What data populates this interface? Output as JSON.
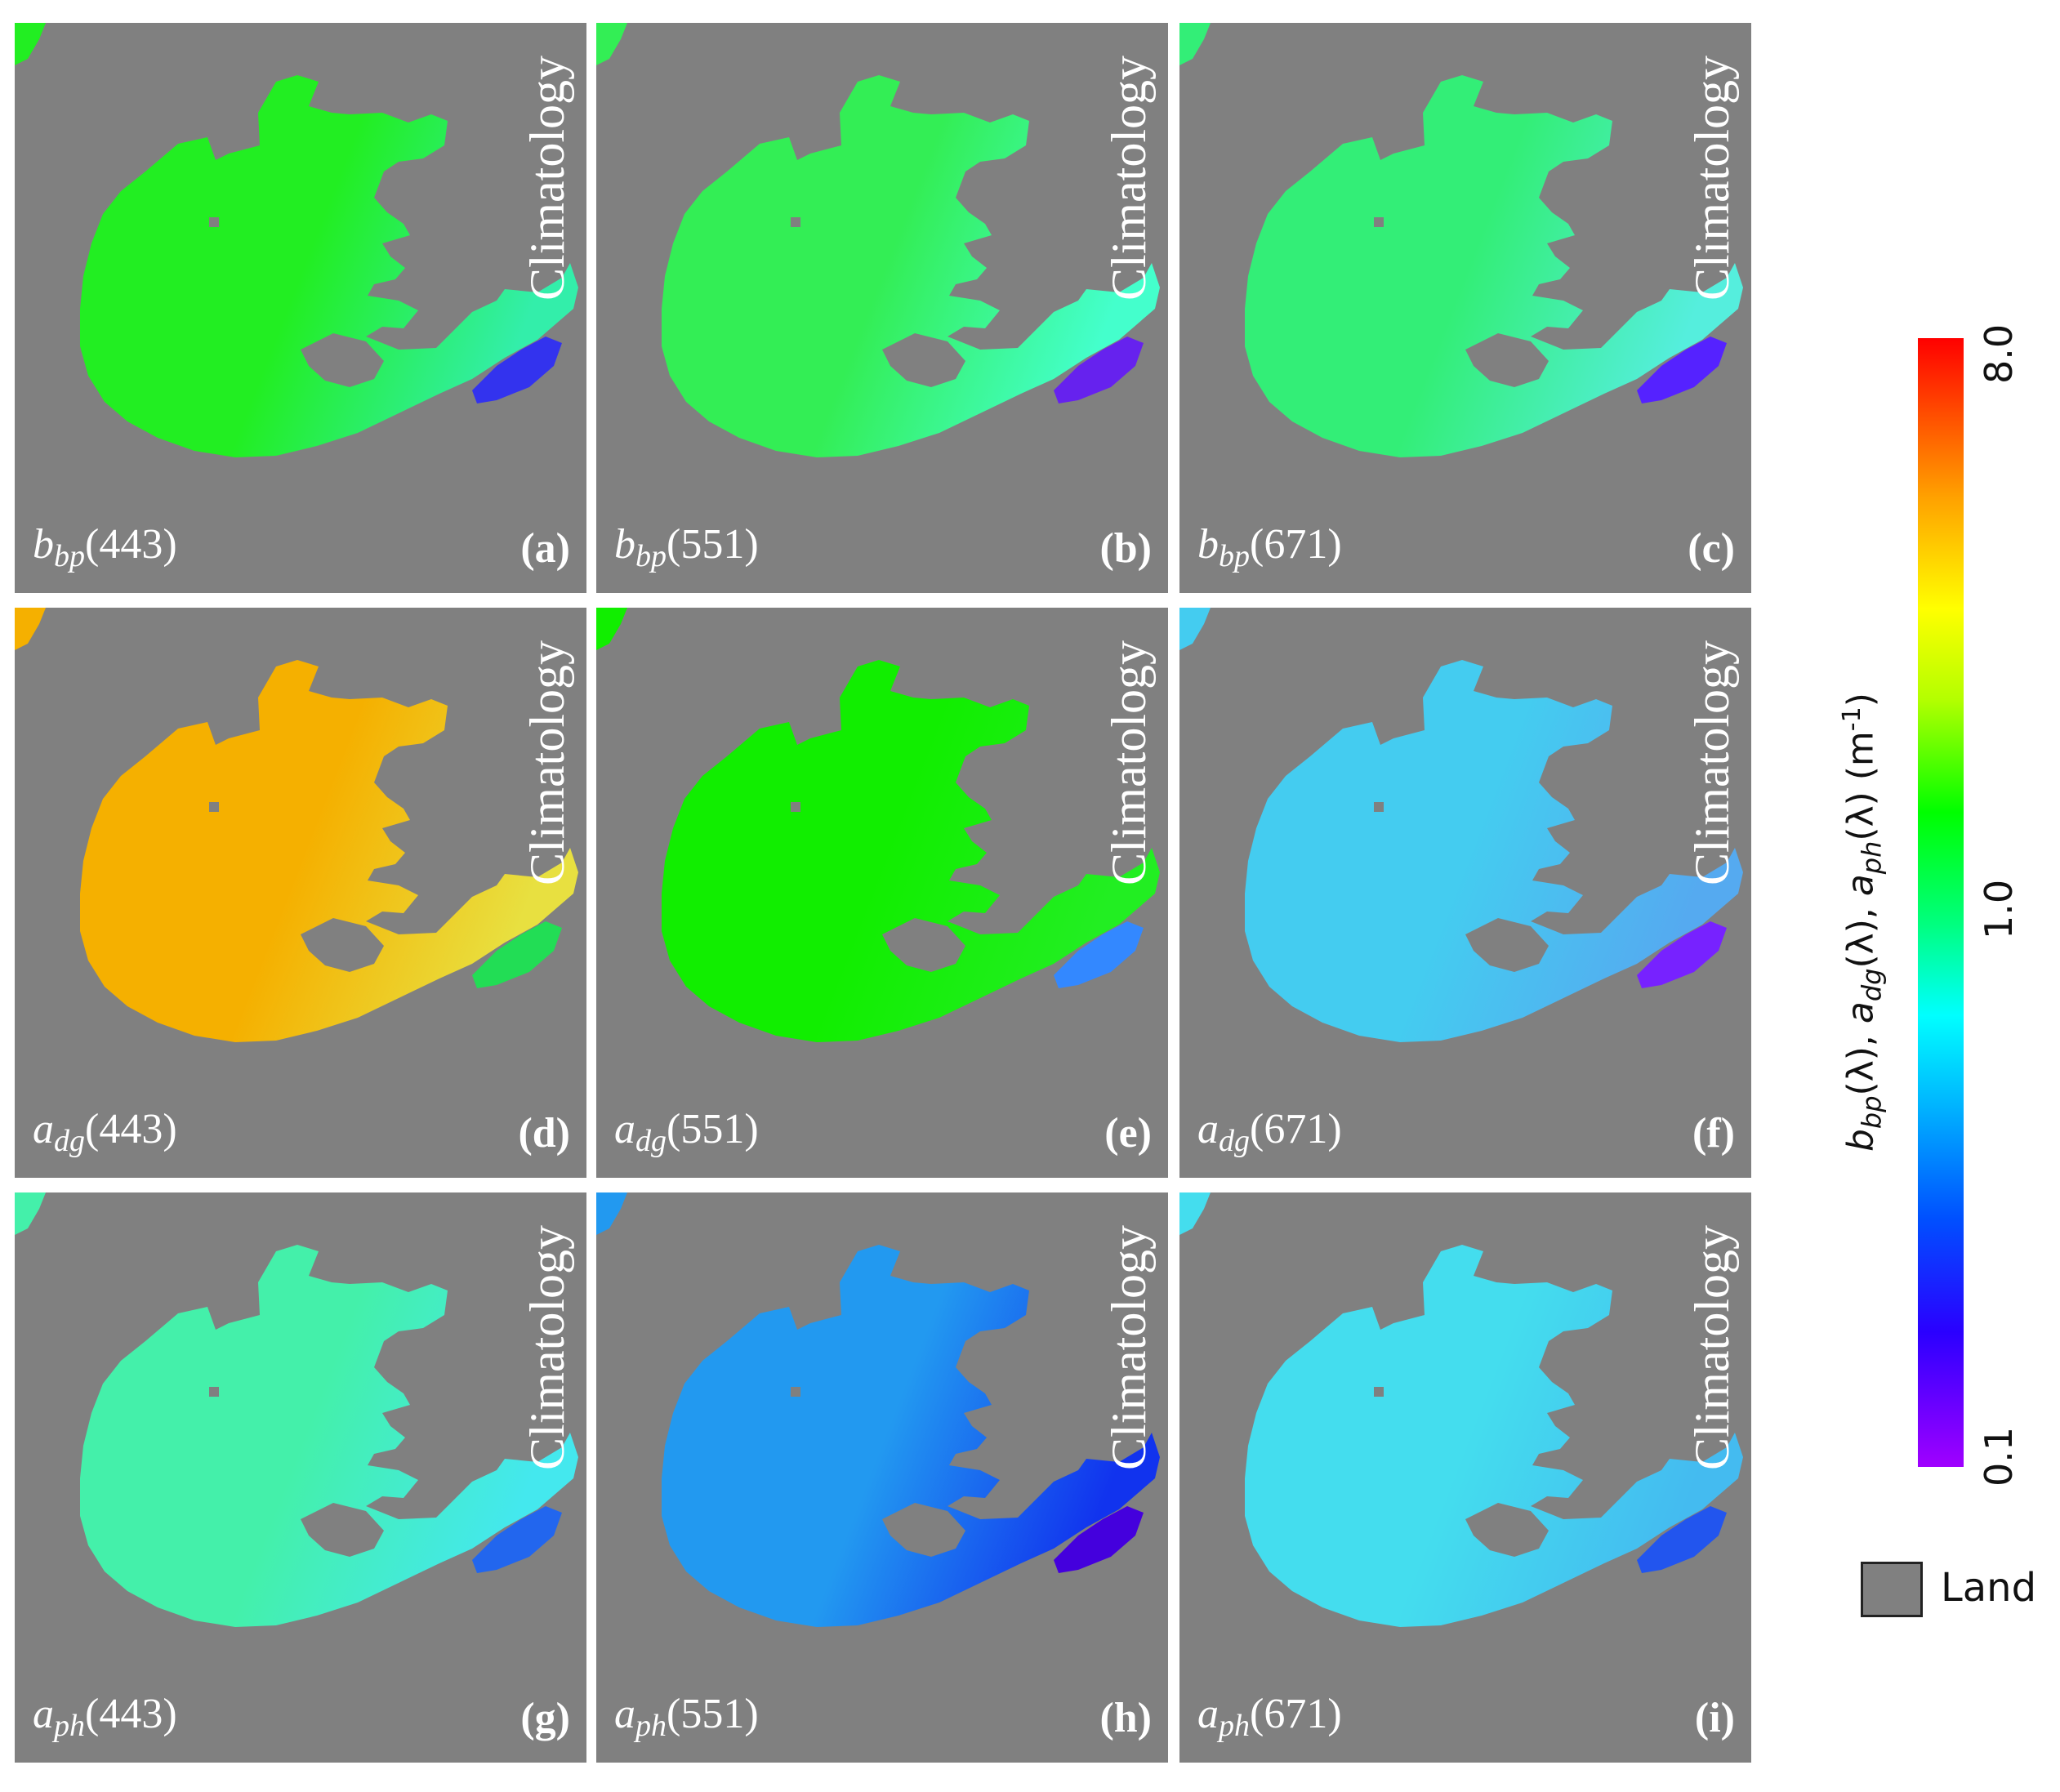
{
  "panels": [
    {
      "id": "a",
      "letter": "(a)",
      "param_symbol": "b",
      "param_sub": "bp",
      "wavelength": "(443)",
      "title": "Climatology",
      "colors": {
        "main": "#22ee22",
        "east": "#33eeaa",
        "channel": "#3333ee"
      }
    },
    {
      "id": "b",
      "letter": "(b)",
      "param_symbol": "b",
      "param_sub": "bp",
      "wavelength": "(551)",
      "title": "Climatology",
      "colors": {
        "main": "#33ee55",
        "east": "#44ffcc",
        "channel": "#6622ee"
      }
    },
    {
      "id": "c",
      "letter": "(c)",
      "param_symbol": "b",
      "param_sub": "bp",
      "wavelength": "(671)",
      "title": "Climatology",
      "colors": {
        "main": "#33ee77",
        "east": "#55eedd",
        "channel": "#5522ff"
      }
    },
    {
      "id": "d",
      "letter": "(d)",
      "param_symbol": "a",
      "param_sub": "dg",
      "wavelength": "(443)",
      "title": "Climatology",
      "colors": {
        "main": "#f5b000",
        "east": "#e8e040",
        "channel": "#22dd55"
      }
    },
    {
      "id": "e",
      "letter": "(e)",
      "param_symbol": "a",
      "param_sub": "dg",
      "wavelength": "(551)",
      "title": "Climatology",
      "colors": {
        "main": "#11ee00",
        "east": "#22ee22",
        "channel": "#3388ff"
      }
    },
    {
      "id": "f",
      "letter": "(f)",
      "param_symbol": "a",
      "param_sub": "dg",
      "wavelength": "(671)",
      "title": "Climatology",
      "colors": {
        "main": "#44ccf0",
        "east": "#55aaf0",
        "channel": "#7722ff"
      }
    },
    {
      "id": "g",
      "letter": "(g)",
      "param_symbol": "a",
      "param_sub": "ph",
      "wavelength": "(443)",
      "title": "Climatology",
      "colors": {
        "main": "#44f0aa",
        "east": "#44e8ee",
        "channel": "#2266ee"
      }
    },
    {
      "id": "h",
      "letter": "(h)",
      "param_symbol": "a",
      "param_sub": "ph",
      "wavelength": "(551)",
      "title": "Climatology",
      "colors": {
        "main": "#2299f0",
        "east": "#1133ee",
        "channel": "#4400dd"
      }
    },
    {
      "id": "i",
      "letter": "(i)",
      "param_symbol": "a",
      "param_sub": "ph",
      "wavelength": "(671)",
      "title": "Climatology",
      "colors": {
        "main": "#44ddee",
        "east": "#44bbf0",
        "channel": "#2255ee"
      }
    }
  ],
  "colorbar": {
    "ticks": [
      "8.0",
      "1.0",
      "0.1"
    ],
    "label_part1": "b",
    "label_sub1": "bp",
    "label_part2": "(λ), ",
    "label_part3": "a",
    "label_sub2": "dg",
    "label_part4": "(λ), ",
    "label_part5": "a",
    "label_sub3": "ph",
    "label_part6": "(λ) (m",
    "label_sup": "-1",
    "label_part7": ")",
    "colors": [
      "#a000ff",
      "#0000ff",
      "#00ffff",
      "#00ff00",
      "#ffff00",
      "#ff0000"
    ]
  },
  "legend": {
    "label": "Land",
    "color": "#808080"
  }
}
